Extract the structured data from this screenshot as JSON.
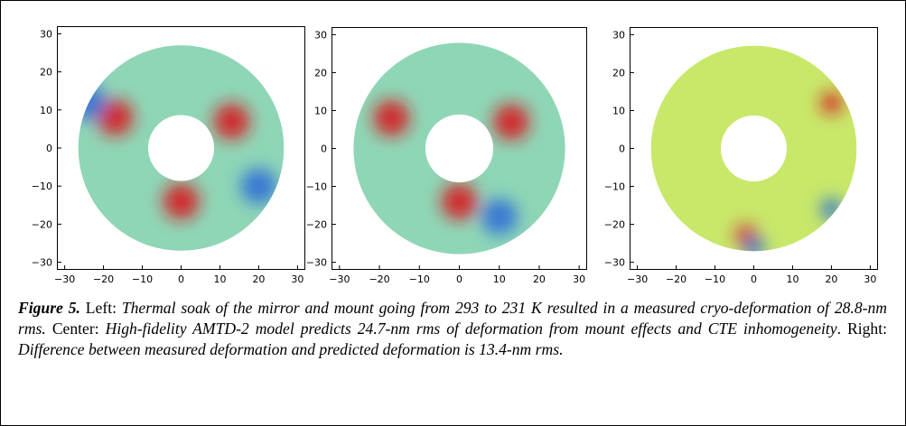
{
  "panels": [
    {
      "name": "Left",
      "xticks": [
        "−30",
        "−20",
        "−10",
        "0",
        "10",
        "20",
        "30"
      ],
      "yticks": [
        "30",
        "20",
        "10",
        "0",
        "−10",
        "−20",
        "−30"
      ]
    },
    {
      "name": "Center",
      "xticks": [
        "−30",
        "−20",
        "−10",
        "0",
        "10",
        "20",
        "30"
      ],
      "yticks": [
        "30",
        "20",
        "10",
        "0",
        "−10",
        "−20",
        "−30"
      ]
    },
    {
      "name": "Right",
      "xticks": [
        "−30",
        "−20",
        "−10",
        "0",
        "10",
        "20",
        "30"
      ],
      "yticks": [
        "30",
        "20",
        "10",
        "0",
        "−10",
        "−20",
        "−30"
      ]
    }
  ],
  "chart_data": [
    {
      "type": "heatmap",
      "panel": "Left",
      "xlim": [
        -32,
        32
      ],
      "ylim": [
        -32,
        32
      ],
      "outer_radius": 26.5,
      "inner_radius": 8.5,
      "colormap": "jet",
      "features": [
        {
          "x": 0,
          "y": -14,
          "level": "high"
        },
        {
          "x": -17,
          "y": 8,
          "level": "high"
        },
        {
          "x": 13,
          "y": 7,
          "level": "high"
        },
        {
          "x": 20,
          "y": -10,
          "level": "low"
        },
        {
          "x": -24,
          "y": 12,
          "level": "low"
        }
      ]
    },
    {
      "type": "heatmap",
      "panel": "Center",
      "xlim": [
        -32,
        32
      ],
      "ylim": [
        -32,
        32
      ],
      "outer_radius": 26.5,
      "inner_radius": 8.5,
      "colormap": "jet",
      "features": [
        {
          "x": 0,
          "y": -14,
          "level": "high"
        },
        {
          "x": -17,
          "y": 8,
          "level": "high"
        },
        {
          "x": 13,
          "y": 7,
          "level": "high"
        },
        {
          "x": 10,
          "y": -18,
          "level": "low"
        }
      ]
    },
    {
      "type": "heatmap",
      "panel": "Right",
      "xlim": [
        -32,
        32
      ],
      "ylim": [
        -32,
        32
      ],
      "outer_radius": 26.5,
      "inner_radius": 8.5,
      "colormap": "jet",
      "features": [
        {
          "x": 20,
          "y": 12,
          "level": "high"
        },
        {
          "x": -2,
          "y": -23,
          "level": "high"
        },
        {
          "x": 0,
          "y": -26,
          "level": "low"
        },
        {
          "x": 20,
          "y": -16,
          "level": "low"
        }
      ]
    }
  ],
  "caption": {
    "label": "Figure 5.",
    "left_label": "Left:",
    "left_text": "Thermal soak of the mirror and mount going from 293 to 231 K resulted in a measured cryo-deformation of 28.8-nm rms.",
    "center_label": "Center:",
    "center_text": "High-fidelity AMTD-2 model predicts 24.7-nm rms of deformation from mount effects and CTE inhomogeneity",
    "center_end": ".",
    "right_label": "Right:",
    "right_text": "Difference between measured deformation and predicted deformation is 13.4-nm rms."
  }
}
